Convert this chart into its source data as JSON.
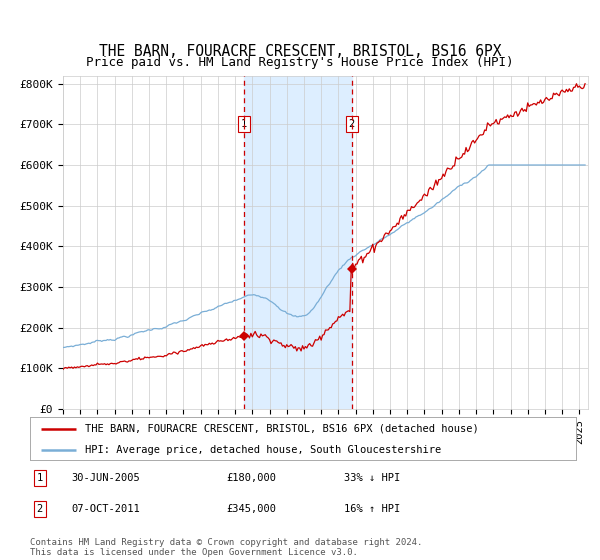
{
  "title": "THE BARN, FOURACRE CRESCENT, BRISTOL, BS16 6PX",
  "subtitle": "Price paid vs. HM Land Registry's House Price Index (HPI)",
  "ylabel_ticks": [
    "£0",
    "£100K",
    "£200K",
    "£300K",
    "£400K",
    "£500K",
    "£600K",
    "£700K",
    "£800K"
  ],
  "ytick_values": [
    0,
    100000,
    200000,
    300000,
    400000,
    500000,
    600000,
    700000,
    800000
  ],
  "ylim": [
    0,
    820000
  ],
  "xlim_start": 1995.0,
  "xlim_end": 2025.5,
  "sale1_date": 2005.5,
  "sale1_price": 180000,
  "sale2_date": 2011.77,
  "sale2_price": 345000,
  "legend_line1": "THE BARN, FOURACRE CRESCENT, BRISTOL, BS16 6PX (detached house)",
  "legend_line2": "HPI: Average price, detached house, South Gloucestershire",
  "footnote": "Contains HM Land Registry data © Crown copyright and database right 2024.\nThis data is licensed under the Open Government Licence v3.0.",
  "hpi_color": "#7aaed6",
  "price_color": "#cc0000",
  "shade_color": "#ddeeff",
  "vline_color": "#cc0000",
  "grid_color": "#cccccc",
  "background_color": "#ffffff",
  "title_fontsize": 10.5,
  "subtitle_fontsize": 9,
  "tick_fontsize": 8,
  "legend_fontsize": 7.5,
  "footnote_fontsize": 6.5
}
